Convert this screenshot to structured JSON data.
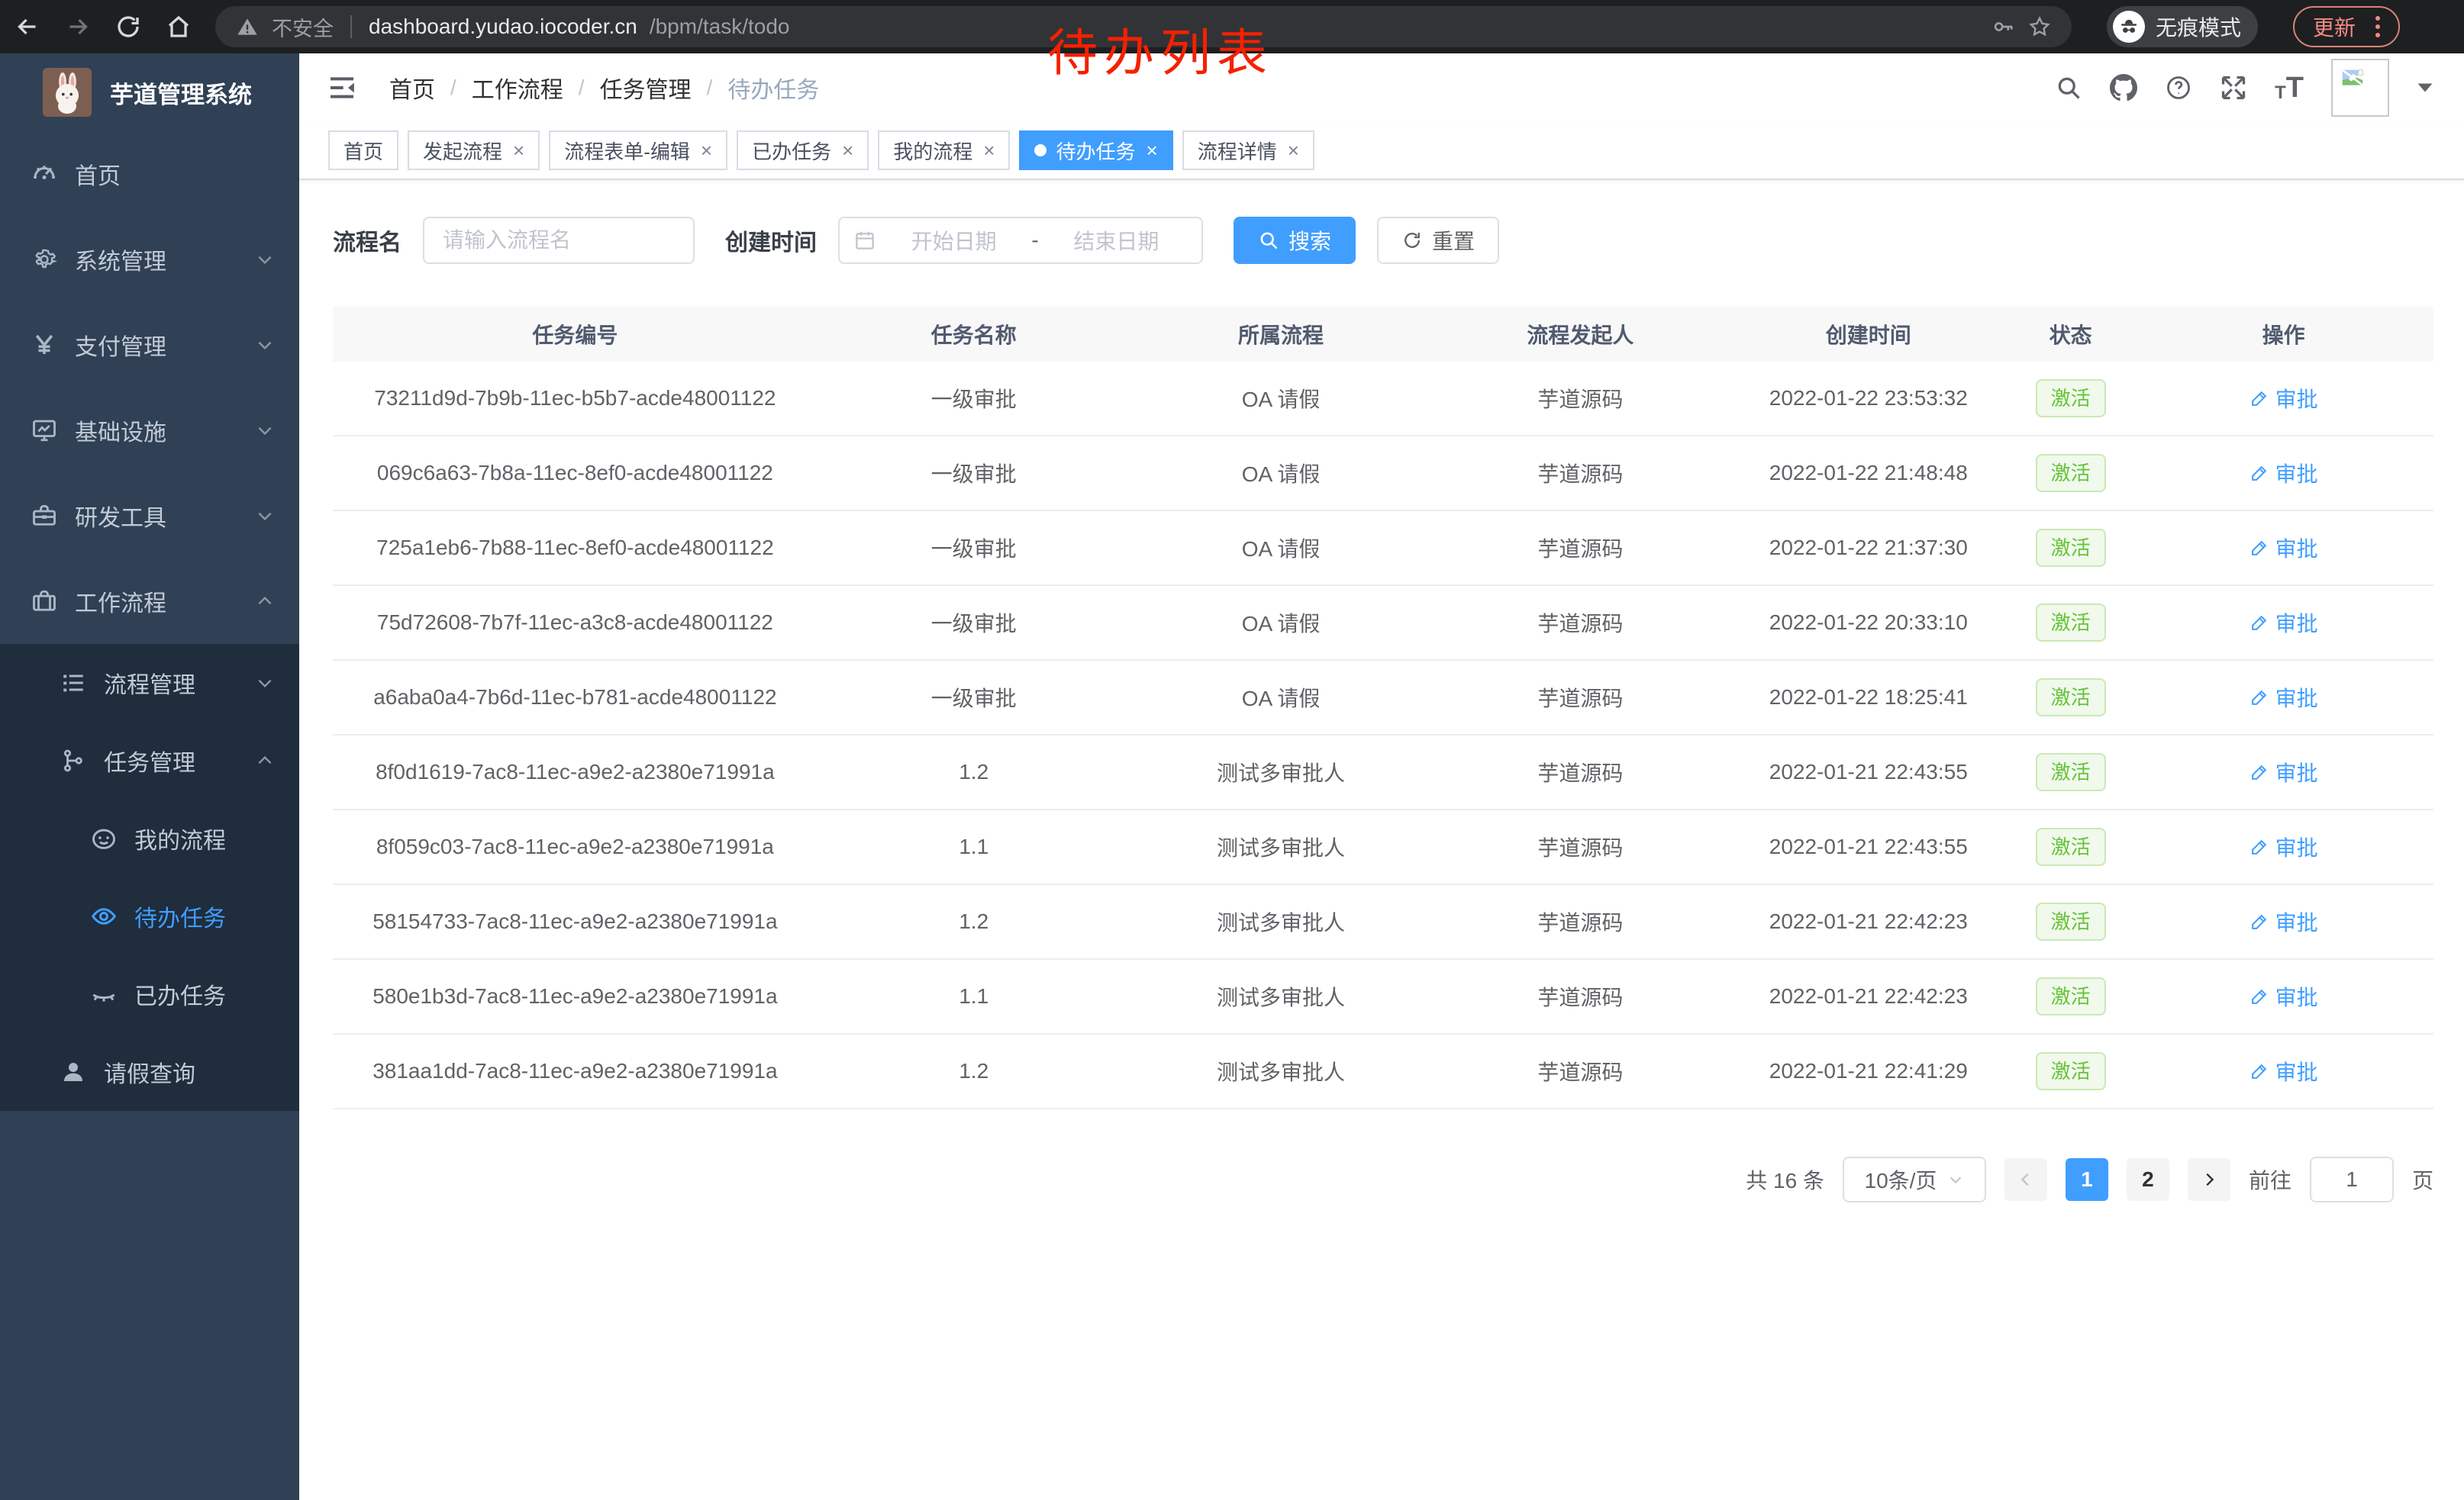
{
  "overlay_title": "待办列表",
  "browser": {
    "security_label": "不安全",
    "url_host": "dashboard.yudao.iocoder.cn",
    "url_path": "/bpm/task/todo",
    "incognito_label": "无痕模式",
    "update_label": "更新"
  },
  "sidebar": {
    "logo_title": "芋道管理系统",
    "items": [
      {
        "name": "home",
        "label": "首页",
        "icon": "dashboard-icon",
        "level": 1,
        "chevron": "",
        "dark": false,
        "active": false
      },
      {
        "name": "system",
        "label": "系统管理",
        "icon": "gear-icon",
        "level": 1,
        "chevron": "down",
        "dark": false,
        "active": false
      },
      {
        "name": "payment",
        "label": "支付管理",
        "icon": "yen-icon",
        "level": 1,
        "chevron": "down",
        "dark": false,
        "active": false
      },
      {
        "name": "infrastructure",
        "label": "基础设施",
        "icon": "monitor-icon",
        "level": 1,
        "chevron": "down",
        "dark": false,
        "active": false
      },
      {
        "name": "dev-tools",
        "label": "研发工具",
        "icon": "toolbox-icon",
        "level": 1,
        "chevron": "down",
        "dark": false,
        "active": false
      },
      {
        "name": "workflow",
        "label": "工作流程",
        "icon": "briefcase-icon",
        "level": 1,
        "chevron": "up",
        "dark": false,
        "active": false
      },
      {
        "name": "process-mgmt",
        "label": "流程管理",
        "icon": "list-tree-icon",
        "level": 2,
        "chevron": "down",
        "dark": true,
        "active": false
      },
      {
        "name": "task-mgmt",
        "label": "任务管理",
        "icon": "org-tree-icon",
        "level": 2,
        "chevron": "up",
        "dark": true,
        "active": false
      },
      {
        "name": "my-process",
        "label": "我的流程",
        "icon": "face-icon",
        "level": 3,
        "chevron": "",
        "dark": true,
        "active": false
      },
      {
        "name": "todo-task",
        "label": "待办任务",
        "icon": "eye-open-icon",
        "level": 3,
        "chevron": "",
        "dark": true,
        "active": true
      },
      {
        "name": "done-task",
        "label": "已办任务",
        "icon": "eye-closed-icon",
        "level": 3,
        "chevron": "",
        "dark": true,
        "active": false
      },
      {
        "name": "leave-query",
        "label": "请假查询",
        "icon": "user-icon",
        "level": 2,
        "chevron": "",
        "dark": true,
        "active": false
      }
    ]
  },
  "header": {
    "breadcrumb": [
      "首页",
      "工作流程",
      "任务管理",
      "待办任务"
    ]
  },
  "tabs": [
    {
      "name": "home",
      "label": "首页",
      "closable": false,
      "active": false
    },
    {
      "name": "start-process",
      "label": "发起流程",
      "closable": true,
      "active": false
    },
    {
      "name": "form-edit",
      "label": "流程表单-编辑",
      "closable": true,
      "active": false
    },
    {
      "name": "done-task",
      "label": "已办任务",
      "closable": true,
      "active": false
    },
    {
      "name": "my-process",
      "label": "我的流程",
      "closable": true,
      "active": false
    },
    {
      "name": "todo-task",
      "label": "待办任务",
      "closable": true,
      "active": true
    },
    {
      "name": "process-detail",
      "label": "流程详情",
      "closable": true,
      "active": false
    }
  ],
  "filters": {
    "name_label": "流程名",
    "name_placeholder": "请输入流程名",
    "time_label": "创建时间",
    "start_placeholder": "开始日期",
    "separator": "-",
    "end_placeholder": "结束日期",
    "search_label": "搜索",
    "reset_label": "重置"
  },
  "table": {
    "columns": [
      "任务编号",
      "任务名称",
      "所属流程",
      "流程发起人",
      "创建时间",
      "状态",
      "操作"
    ],
    "rows": [
      {
        "id": "73211d9d-7b9b-11ec-b5b7-acde48001122",
        "name": "一级审批",
        "process": "OA 请假",
        "initiator": "芋道源码",
        "created": "2022-01-22 23:53:32",
        "status": "激活",
        "action": "审批"
      },
      {
        "id": "069c6a63-7b8a-11ec-8ef0-acde48001122",
        "name": "一级审批",
        "process": "OA 请假",
        "initiator": "芋道源码",
        "created": "2022-01-22 21:48:48",
        "status": "激活",
        "action": "审批"
      },
      {
        "id": "725a1eb6-7b88-11ec-8ef0-acde48001122",
        "name": "一级审批",
        "process": "OA 请假",
        "initiator": "芋道源码",
        "created": "2022-01-22 21:37:30",
        "status": "激活",
        "action": "审批"
      },
      {
        "id": "75d72608-7b7f-11ec-a3c8-acde48001122",
        "name": "一级审批",
        "process": "OA 请假",
        "initiator": "芋道源码",
        "created": "2022-01-22 20:33:10",
        "status": "激活",
        "action": "审批"
      },
      {
        "id": "a6aba0a4-7b6d-11ec-b781-acde48001122",
        "name": "一级审批",
        "process": "OA 请假",
        "initiator": "芋道源码",
        "created": "2022-01-22 18:25:41",
        "status": "激活",
        "action": "审批"
      },
      {
        "id": "8f0d1619-7ac8-11ec-a9e2-a2380e71991a",
        "name": "1.2",
        "process": "测试多审批人",
        "initiator": "芋道源码",
        "created": "2022-01-21 22:43:55",
        "status": "激活",
        "action": "审批"
      },
      {
        "id": "8f059c03-7ac8-11ec-a9e2-a2380e71991a",
        "name": "1.1",
        "process": "测试多审批人",
        "initiator": "芋道源码",
        "created": "2022-01-21 22:43:55",
        "status": "激活",
        "action": "审批"
      },
      {
        "id": "58154733-7ac8-11ec-a9e2-a2380e71991a",
        "name": "1.2",
        "process": "测试多审批人",
        "initiator": "芋道源码",
        "created": "2022-01-21 22:42:23",
        "status": "激活",
        "action": "审批"
      },
      {
        "id": "580e1b3d-7ac8-11ec-a9e2-a2380e71991a",
        "name": "1.1",
        "process": "测试多审批人",
        "initiator": "芋道源码",
        "created": "2022-01-21 22:42:23",
        "status": "激活",
        "action": "审批"
      },
      {
        "id": "381aa1dd-7ac8-11ec-a9e2-a2380e71991a",
        "name": "1.2",
        "process": "测试多审批人",
        "initiator": "芋道源码",
        "created": "2022-01-21 22:41:29",
        "status": "激活",
        "action": "审批"
      }
    ]
  },
  "pagination": {
    "total_label": "共 16 条",
    "page_size_label": "10条/页",
    "pages": [
      "1",
      "2"
    ],
    "active_page": "1",
    "goto_label": "前往",
    "goto_value": "1",
    "unit_label": "页"
  },
  "colors": {
    "accent": "#409eff",
    "status_success_text": "#67c23a",
    "status_success_bg": "#f0f9eb",
    "sidebar_bg": "#304156",
    "sidebar_sub_bg": "#1f2d3d",
    "overlay_red": "#f52000"
  }
}
